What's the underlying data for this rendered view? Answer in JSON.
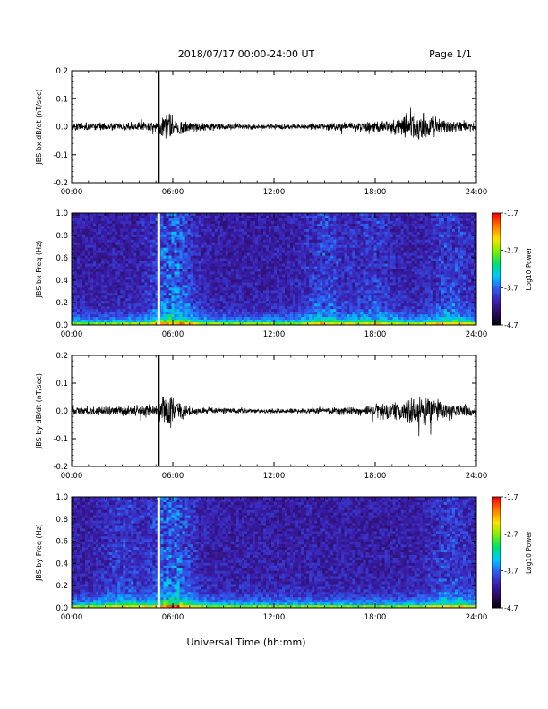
{
  "header": {
    "title": "2018/07/17  00:00-24:00 UT",
    "page": "Page 1/1"
  },
  "footer": {
    "xlabel": "Universal Time (hh:mm)"
  },
  "colorbar": {
    "title": "Log10 Power",
    "ticks": [
      "-1.7",
      "-2.7",
      "-3.7",
      "-4.7"
    ],
    "range": [
      -4.7,
      -1.7
    ],
    "colors": [
      "#000000",
      "#2a0a5a",
      "#3b1fb0",
      "#2f5cf0",
      "#00c8ff",
      "#00e070",
      "#7ef000",
      "#ffe000",
      "#ff7a00",
      "#ff0000"
    ]
  },
  "chart_data": [
    {
      "type": "line",
      "id": "bx_dbdt",
      "ylabel": "JBS bx dB/dt (nT/sec)",
      "xlim": [
        "00:00",
        "24:00"
      ],
      "ylim": [
        -0.2,
        0.2
      ],
      "x_ticks": [
        "00:00",
        "06:00",
        "12:00",
        "18:00",
        "24:00"
      ],
      "y_ticks": [
        "0.2",
        "0.1",
        "0.0",
        "-0.1",
        "-0.2"
      ],
      "gap_marker_time": "05:10",
      "series": [
        {
          "color": "#000000",
          "x": [
            "00:00",
            "01:00",
            "02:00",
            "03:00",
            "04:00",
            "05:00",
            "05:40",
            "06:00",
            "06:30",
            "07:00",
            "08:00",
            "09:00",
            "10:00",
            "11:00",
            "12:00",
            "13:00",
            "14:00",
            "15:00",
            "16:00",
            "17:00",
            "18:00",
            "19:00",
            "20:00",
            "21:00",
            "22:00",
            "23:00",
            "24:00"
          ],
          "envelope": [
            0.012,
            0.012,
            0.012,
            0.012,
            0.015,
            0.015,
            0.04,
            0.035,
            0.022,
            0.016,
            0.012,
            0.01,
            0.009,
            0.008,
            0.008,
            0.008,
            0.009,
            0.01,
            0.012,
            0.013,
            0.018,
            0.022,
            0.04,
            0.045,
            0.02,
            0.016,
            0.015
          ]
        }
      ]
    },
    {
      "type": "heatmap",
      "id": "bx_freq",
      "ylabel": "JBS bx Freq (Hz)",
      "xlim": [
        "00:00",
        "24:00"
      ],
      "ylim": [
        0.0,
        1.0
      ],
      "x_ticks": [
        "00:00",
        "06:00",
        "12:00",
        "18:00",
        "24:00"
      ],
      "y_ticks": [
        "1.0",
        "0.8",
        "0.6",
        "0.4",
        "0.2",
        "0.0"
      ],
      "zlim": [
        -4.7,
        -1.7
      ],
      "gap_time": "05:10",
      "activity": [
        {
          "time": "06:00",
          "level": 1.0
        },
        {
          "time": "15:00",
          "level": 0.6
        },
        {
          "time": "18:00",
          "level": 0.5
        },
        {
          "time": "22:30",
          "level": 0.6
        }
      ]
    },
    {
      "type": "line",
      "id": "by_dbdt",
      "ylabel": "JBS by dB/dt (nT/sec)",
      "xlim": [
        "00:00",
        "24:00"
      ],
      "ylim": [
        -0.2,
        0.2
      ],
      "x_ticks": [
        "00:00",
        "06:00",
        "12:00",
        "18:00",
        "24:00"
      ],
      "y_ticks": [
        "0.2",
        "0.1",
        "0.0",
        "-0.1",
        "-0.2"
      ],
      "gap_marker_time": "05:10",
      "series": [
        {
          "color": "#000000",
          "x": [
            "00:00",
            "01:00",
            "02:00",
            "03:00",
            "04:00",
            "05:00",
            "05:40",
            "06:00",
            "06:30",
            "07:00",
            "08:00",
            "09:00",
            "10:00",
            "11:00",
            "12:00",
            "13:00",
            "14:00",
            "15:00",
            "16:00",
            "17:00",
            "18:00",
            "19:00",
            "20:00",
            "21:00",
            "22:00",
            "23:00",
            "24:00"
          ],
          "envelope": [
            0.012,
            0.014,
            0.015,
            0.014,
            0.018,
            0.02,
            0.06,
            0.045,
            0.025,
            0.016,
            0.011,
            0.009,
            0.008,
            0.007,
            0.007,
            0.007,
            0.008,
            0.009,
            0.012,
            0.014,
            0.02,
            0.028,
            0.04,
            0.042,
            0.03,
            0.02,
            0.018
          ]
        }
      ]
    },
    {
      "type": "heatmap",
      "id": "by_freq",
      "ylabel": "JBS by Freq (Hz)",
      "xlim": [
        "00:00",
        "24:00"
      ],
      "ylim": [
        0.0,
        1.0
      ],
      "x_ticks": [
        "00:00",
        "06:00",
        "12:00",
        "18:00",
        "24:00"
      ],
      "y_ticks": [
        "1.0",
        "0.8",
        "0.6",
        "0.4",
        "0.2",
        "0.0"
      ],
      "zlim": [
        -4.7,
        -1.7
      ],
      "gap_time": "05:10",
      "activity": [
        {
          "time": "03:00",
          "level": 0.5
        },
        {
          "time": "06:00",
          "level": 1.0
        },
        {
          "time": "22:30",
          "level": 0.55
        }
      ]
    }
  ]
}
